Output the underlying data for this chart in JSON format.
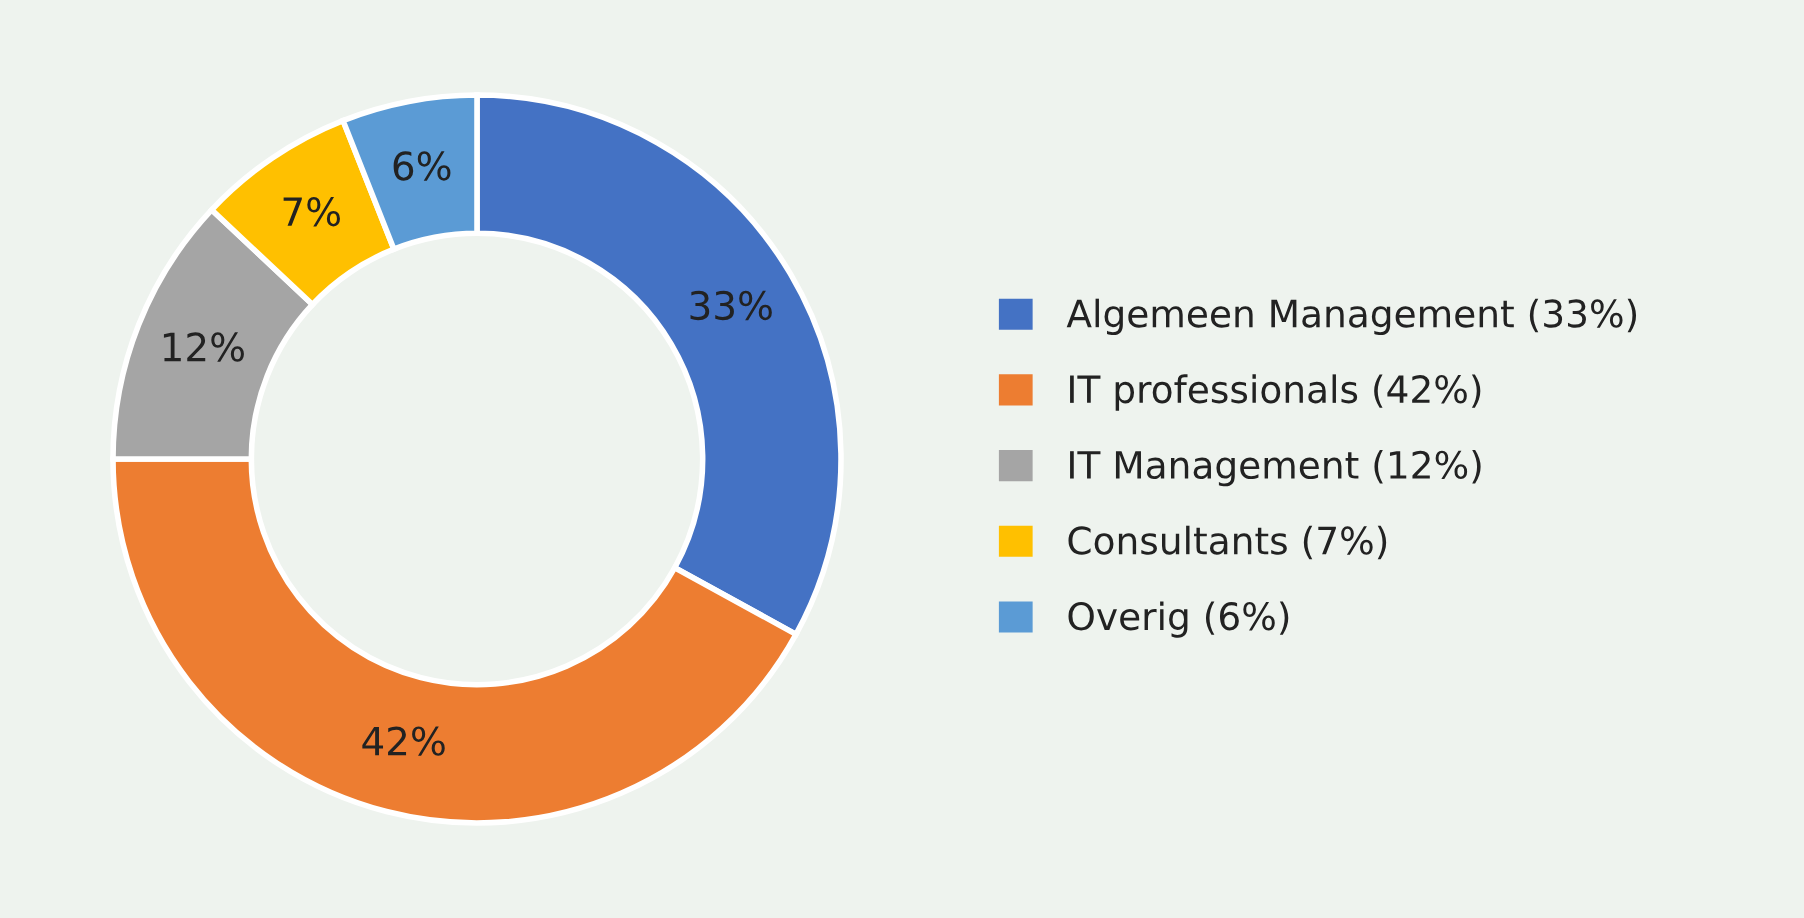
{
  "chart_data": {
    "type": "donut",
    "categories": [
      "Algemeen Management (33%)",
      "IT professionals (42%)",
      "IT Management (12%)",
      "Consultants (7%)",
      "Overig (6%)"
    ],
    "values": [
      33,
      42,
      12,
      7,
      6
    ],
    "colors": [
      "#4472c4",
      "#ed7d31",
      "#a5a5a5",
      "#ffc000",
      "#5b9bd5"
    ],
    "value_labels": [
      "33%",
      "42%",
      "12%",
      "7%",
      "6%"
    ],
    "legend": "right"
  }
}
